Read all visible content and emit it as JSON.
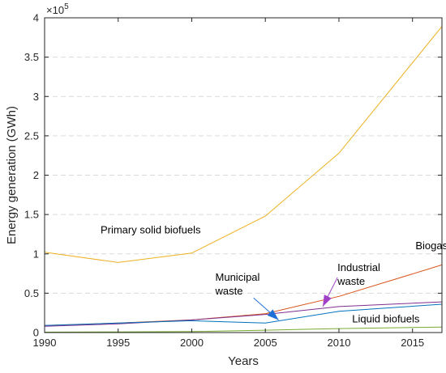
{
  "chart_data": {
    "type": "line",
    "title": "",
    "xlabel": "Years",
    "ylabel": "Energy generation (GWh)",
    "xlim": [
      1990,
      2017
    ],
    "ylim": [
      0,
      400000
    ],
    "x_ticks": [
      1990,
      1995,
      2000,
      2005,
      2010,
      2015
    ],
    "y_ticks": [
      0,
      50000,
      100000,
      150000,
      200000,
      250000,
      300000,
      350000,
      400000
    ],
    "y_tick_labels": [
      "0",
      "0.5",
      "1",
      "1.5",
      "2",
      "2.5",
      "3",
      "3.5",
      "4"
    ],
    "y_exponent_label": "×10",
    "y_exponent_power": "5",
    "grid": "horizontal-dashed",
    "x": [
      1990,
      1995,
      2000,
      2005,
      2010,
      2017
    ],
    "series": [
      {
        "color": "#EDB120",
        "values": [
          102000,
          89000,
          101000,
          148000,
          228000,
          389000
        ]
      },
      {
        "color": "#D95319",
        "values": [
          9000,
          12000,
          16000,
          24000,
          46000,
          86000
        ]
      },
      {
        "color": "#7E2F8E",
        "values": [
          8000,
          11000,
          16000,
          23000,
          33000,
          39000
        ]
      },
      {
        "color": "#0072BD",
        "values": [
          9000,
          12000,
          15000,
          12000,
          27000,
          36000
        ]
      },
      {
        "color": "#77AC30",
        "values": [
          500,
          800,
          1200,
          3000,
          5000,
          7000
        ]
      }
    ],
    "annotations": [
      {
        "lines": [
          "Primary solid biofuels"
        ],
        "x": 1993.8,
        "y": 126000,
        "anchor": "start"
      },
      {
        "lines": [
          "Biogases"
        ],
        "x": 2015.2,
        "y": 106000,
        "anchor": "start"
      },
      {
        "lines": [
          "Industrial",
          "waste"
        ],
        "x": 2009.9,
        "y": 78000,
        "anchor": "start"
      },
      {
        "lines": [
          "Municipal",
          "waste"
        ],
        "x": 2001.6,
        "y": 66000,
        "anchor": "start"
      },
      {
        "lines": [
          "Liquid biofuels"
        ],
        "x": 2010.9,
        "y": 13000,
        "anchor": "start"
      }
    ],
    "arrows": [
      {
        "color": "#1F6FD6",
        "x1": 2004.2,
        "y1": 44000,
        "x2": 2005.9,
        "y2": 16000
      },
      {
        "color": "#A040C8",
        "x1": 2009.9,
        "y1": 70000,
        "x2": 2008.9,
        "y2": 33000
      }
    ]
  }
}
